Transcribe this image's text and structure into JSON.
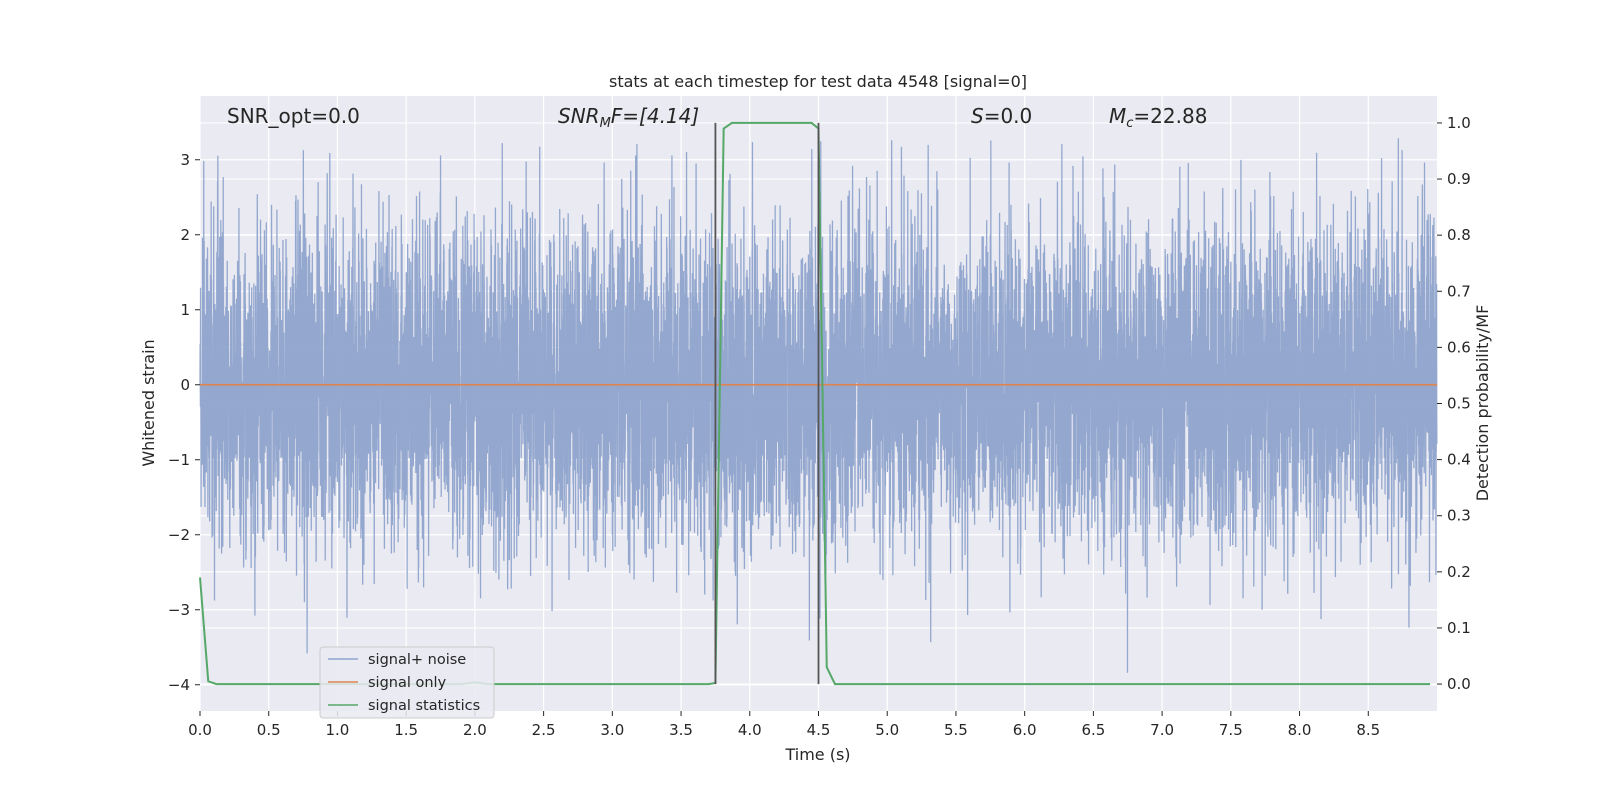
{
  "chart_data": {
    "type": "line",
    "title": "stats at each timestep for test data 4548 [signal=0]",
    "xlabel": "Time (s)",
    "ylabel": "Whitened strain",
    "y2label": "Detection probability/MF",
    "xlim": [
      0.0,
      9.0
    ],
    "ylim": [
      -4.35,
      3.85
    ],
    "y2lim": [
      -0.048,
      1.048
    ],
    "x_ticks": [
      0.0,
      0.5,
      1.0,
      1.5,
      2.0,
      2.5,
      3.0,
      3.5,
      4.0,
      4.5,
      5.0,
      5.5,
      6.0,
      6.5,
      7.0,
      7.5,
      8.0,
      8.5
    ],
    "x_tick_labels": [
      "0.0",
      "0.5",
      "1.0",
      "1.5",
      "2.0",
      "2.5",
      "3.0",
      "3.5",
      "4.0",
      "4.5",
      "5.0",
      "5.5",
      "6.0",
      "6.5",
      "7.0",
      "7.5",
      "8.0",
      "8.5"
    ],
    "y_ticks": [
      -4,
      -3,
      -2,
      -1,
      0,
      1,
      2,
      3
    ],
    "y_tick_labels": [
      "−4",
      "−3",
      "−2",
      "−1",
      "0",
      "1",
      "2",
      "3"
    ],
    "y2_ticks": [
      0.0,
      0.1,
      0.2,
      0.3,
      0.4,
      0.5,
      0.6,
      0.7,
      0.8,
      0.9,
      1.0
    ],
    "y2_tick_labels": [
      "0.0",
      "0.1",
      "0.2",
      "0.3",
      "0.4",
      "0.5",
      "0.6",
      "0.7",
      "0.8",
      "0.9",
      "1.0"
    ],
    "grid": true,
    "legend_position": "lower-left",
    "legend": [
      "signal+ noise",
      "signal only",
      "signal statistics"
    ],
    "colors": {
      "noise": "#8fa4cc",
      "signal_only": "#dd8452",
      "statistics": "#55a868",
      "markers": "#555555",
      "background": "#eaeaf2",
      "grid": "#ffffff"
    },
    "annotations": {
      "snr_opt": "SNR_opt=0.0",
      "snr_mf_main": "SNR",
      "snr_mf_sub": "M",
      "snr_mf_rest": "F=[4.14]",
      "s_main": "S",
      "s_rest": "=0.0",
      "mc_main": "M",
      "mc_sub": "c",
      "mc_rest": "=22.88"
    },
    "markers_x": [
      3.75,
      4.5
    ],
    "series": [
      {
        "name": "signal+ noise",
        "axis": "left",
        "x_range": [
          0.0,
          9.0
        ],
        "sample_rate_hz": 1024,
        "std": 1.0,
        "y_range_observed": [
          -4.0,
          3.3
        ]
      },
      {
        "name": "signal only",
        "axis": "left",
        "x": [
          0.0,
          9.0
        ],
        "y": [
          0.0,
          0.0
        ]
      },
      {
        "name": "signal statistics",
        "axis": "right",
        "x": [
          0.0,
          0.06,
          0.12,
          0.25,
          0.5,
          1.0,
          1.5,
          1.9,
          2.0,
          2.1,
          2.5,
          3.0,
          3.5,
          3.7,
          3.75,
          3.81,
          3.87,
          4.0,
          4.2,
          4.4,
          4.45,
          4.5,
          4.56,
          4.62,
          4.75,
          5.0,
          6.0,
          7.0,
          8.0,
          8.95
        ],
        "y": [
          0.19,
          0.005,
          0.0,
          0.0,
          0.0,
          0.0,
          0.0,
          0.0,
          0.003,
          0.0,
          0.0,
          0.0,
          0.0,
          0.0,
          0.002,
          0.99,
          1.0,
          1.0,
          1.0,
          1.0,
          1.0,
          0.99,
          0.03,
          0.0,
          0.0,
          0.0,
          0.0,
          0.0,
          0.0,
          0.0
        ]
      }
    ]
  }
}
